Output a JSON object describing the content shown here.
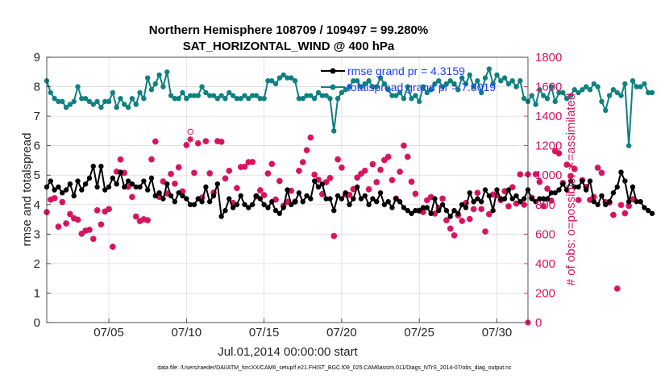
{
  "title": {
    "line1": "Northern Hemisphere 108709 / 109497 = 99.280%",
    "line2": "SAT_HORIZONTAL_WIND @ 400 hPa"
  },
  "footer": "data file: /Users/raeder/DAI/ATM_forcXX/CAM6_setup/f.e21.FHIST_BGC.f09_025.CAM6assim.011/Diags_NTrS_2014-07/obs_diag_output.nc",
  "colors": {
    "rmse": "#000000",
    "spread": "#0f8080",
    "obs": "#d6125e"
  },
  "chart_data": {
    "type": "line",
    "title": "Northern Hemisphere 108709 / 109497 = 99.280% — SAT_HORIZONTAL_WIND @ 400 hPa",
    "xlabel": "Jul.01,2014 00:00:00 start",
    "ylabel": "rmse and totalspread",
    "y2label": "# of obs: o=possible; ∗=assimilated",
    "xlim": [
      1.0,
      32.0
    ],
    "ylim": [
      0,
      9
    ],
    "y2lim": [
      0,
      1800
    ],
    "x_ticks": [
      {
        "value": 5,
        "label": "07/05"
      },
      {
        "value": 10,
        "label": "07/10"
      },
      {
        "value": 15,
        "label": "07/15"
      },
      {
        "value": 20,
        "label": "07/20"
      },
      {
        "value": 25,
        "label": "07/25"
      },
      {
        "value": 30,
        "label": "07/30"
      }
    ],
    "y_ticks": [
      0,
      1,
      2,
      3,
      4,
      5,
      6,
      7,
      8,
      9
    ],
    "y2_ticks": [
      0,
      200,
      400,
      600,
      800,
      1000,
      1200,
      1400,
      1600,
      1800
    ],
    "grid": true,
    "legend": {
      "position": "top-right",
      "entries": [
        "rmse grand pr = 4.3159",
        "totalspread grand pr = 7.8019"
      ]
    },
    "x_start": 1.0,
    "x_step": 0.25,
    "series": [
      {
        "name": "rmse grand pr = 4.3159",
        "axis": "left",
        "values": [
          4.6,
          4.8,
          4.5,
          4.6,
          4.4,
          4.5,
          4.7,
          4.3,
          4.8,
          4.5,
          4.7,
          4.9,
          5.3,
          4.6,
          5.3,
          4.5,
          4.6,
          4.9,
          4.7,
          5.1,
          4.6,
          4.8,
          4.7,
          4.6,
          4.6,
          4.8,
          4.5,
          4.9,
          4.3,
          4.4,
          4.2,
          4.7,
          4.3,
          4.1,
          4.4,
          4.3,
          4.2,
          4.0,
          4.0,
          4.2,
          4.1,
          4.6,
          4.1,
          4.3,
          4.7,
          3.6,
          3.8,
          4.2,
          3.9,
          4.0,
          4.3,
          4.0,
          3.9,
          4.0,
          4.3,
          4.2,
          4.0,
          3.9,
          4.1,
          3.8,
          3.7,
          3.9,
          4.5,
          4.0,
          4.1,
          4.4,
          4.1,
          4.3,
          4.2,
          4.8,
          4.6,
          4.7,
          4.2,
          4.2,
          3.8,
          4.3,
          4.2,
          4.4,
          4.0,
          4.2,
          4.6,
          4.2,
          4.3,
          4.0,
          4.2,
          4.1,
          4.4,
          4.0,
          4.1,
          3.9,
          4.2,
          4.1,
          3.9,
          3.8,
          3.7,
          3.8,
          3.8,
          3.9,
          3.9,
          3.7,
          4.2,
          3.8,
          4.0,
          3.8,
          3.6,
          3.8,
          3.7,
          4.0,
          3.9,
          4.4,
          4.1,
          4.2,
          4.1,
          4.5,
          4.3,
          3.8,
          4.5,
          4.2,
          4.2,
          4.5,
          4.2,
          4.3,
          4.1,
          4.2,
          4.5,
          4.2,
          4.1,
          4.2,
          4.2,
          4.2,
          4.4,
          4.4,
          4.5,
          4.7,
          4.5,
          4.8,
          4.6,
          4.6,
          4.8,
          4.5,
          4.8,
          4.1,
          4.0,
          4.3,
          4.0,
          4.1,
          4.4,
          4.6,
          5.1,
          4.8,
          4.1,
          4.6,
          4.1,
          4.1,
          3.9,
          3.8,
          3.7
        ]
      },
      {
        "name": "totalspread grand pr = 7.8019",
        "axis": "left",
        "values": [
          8.2,
          7.8,
          7.6,
          7.5,
          7.5,
          7.3,
          7.4,
          7.5,
          8.0,
          7.6,
          7.6,
          7.5,
          7.4,
          7.5,
          7.3,
          7.5,
          7.5,
          7.8,
          7.3,
          7.6,
          7.4,
          7.3,
          7.6,
          7.4,
          7.8,
          7.6,
          8.3,
          7.9,
          8.1,
          8.4,
          8.0,
          8.5,
          7.7,
          7.6,
          7.6,
          7.8,
          7.6,
          7.7,
          7.7,
          7.7,
          8.0,
          7.8,
          7.7,
          7.7,
          7.6,
          7.7,
          7.6,
          7.8,
          7.7,
          7.6,
          7.6,
          7.7,
          7.6,
          7.7,
          7.7,
          7.6,
          7.6,
          8.2,
          8.2,
          8.1,
          8.3,
          8.4,
          8.3,
          8.3,
          8.2,
          7.6,
          7.6,
          7.7,
          7.7,
          7.6,
          7.8,
          7.7,
          7.7,
          7.6,
          6.5,
          7.6,
          7.8,
          7.9,
          8.0,
          8.2,
          8.2,
          8.0,
          8.1,
          8.2,
          8.0,
          8.0,
          8.3,
          8.1,
          7.9,
          7.7,
          7.7,
          7.8,
          7.6,
          8.0,
          7.6,
          7.7,
          7.5,
          8.0,
          7.8,
          7.9,
          8.1,
          8.2,
          8.0,
          8.1,
          8.2,
          8.1,
          7.9,
          8.3,
          8.1,
          8.4,
          8.0,
          8.2,
          7.8,
          8.3,
          8.6,
          8.1,
          8.4,
          8.2,
          8.3,
          8.1,
          8.2,
          8.0,
          8.2,
          7.6,
          7.5,
          7.7,
          7.4,
          7.9,
          7.7,
          7.6,
          8.0,
          7.5,
          7.8,
          7.8,
          7.6,
          7.7,
          7.9,
          7.8,
          7.9,
          8.0,
          7.9,
          8.1,
          8.0,
          7.5,
          7.2,
          7.7,
          7.9,
          7.8,
          7.7,
          8.1,
          6.0,
          8.2,
          8.0,
          8.0,
          8.1,
          7.8,
          7.8
        ]
      },
      {
        "name": "# of obs assimilated",
        "axis": "right",
        "marker": "star",
        "values": [
          749,
          834,
          844,
          650,
          817,
          672,
          736,
          707,
          697,
          602,
          623,
          629,
          567,
          761,
          665,
          753,
          770,
          514,
          1024,
          1106,
          1015,
          921,
          852,
          719,
          688,
          700,
          694,
          1107,
          1228,
          852,
          957,
          875,
          1008,
          942,
          1053,
          890,
          1204,
          1243,
          1015,
          1216,
          847,
          1230,
          1012,
          881,
          1230,
          1226,
          977,
          1029,
          811,
          912,
          1055,
          1057,
          1088,
          1089,
          856,
          897,
          864,
          1011,
          1076,
          834,
          960,
          792,
          819,
          894,
          820,
          1029,
          1088,
          1169,
          1255,
          1003,
          968,
          871,
          952,
          980,
          587,
          1107,
          1051,
          869,
          866,
          905,
          983,
          1009,
          1030,
          904,
          1074,
          952,
          1036,
          1102,
          1124,
          966,
          841,
          1023,
          1200,
          1124,
          955,
          873,
          758,
          749,
          829,
          851,
          739,
          778,
          840,
          694,
          637,
          591,
          727,
          689,
          811,
          702,
          769,
          880,
          770,
          617,
          735,
          868,
          864,
          830,
          891,
          788,
          918,
          807,
          1005,
          799,
          1005,
          846,
          1006,
          954,
          790,
          908,
          827,
          1162,
          1148,
          947,
          1071,
          994,
          1042,
          831,
          966,
          919,
          832,
          852,
          1050,
          1015,
          816,
          814,
          730,
          230,
          797,
          741,
          791,
          836
        ]
      },
      {
        "name": "# of obs possible",
        "axis": "right",
        "marker": "circle",
        "values": [
          749,
          834,
          844,
          651,
          818,
          673,
          736,
          708,
          698,
          603,
          624,
          630,
          568,
          762,
          666,
          754,
          771,
          515,
          1025,
          1107,
          1016,
          922,
          853,
          720,
          689,
          701,
          695,
          1108,
          1229,
          853,
          958,
          876,
          1009,
          943,
          1054,
          891,
          1205,
          1295,
          1016,
          1217,
          848,
          1231,
          1013,
          882,
          1231,
          1227,
          978,
          1030,
          812,
          913,
          1056,
          1058,
          1089,
          1090,
          857,
          898,
          865,
          1012,
          1077,
          835,
          961,
          793,
          820,
          895,
          821,
          1030,
          1089,
          1170,
          1256,
          1004,
          969,
          872,
          953,
          981,
          588,
          1108,
          1052,
          870,
          867,
          906,
          984,
          1010,
          1031,
          905,
          1075,
          953,
          1037,
          1103,
          1125,
          967,
          842,
          1024,
          1201,
          1125,
          956,
          874,
          759,
          750,
          830,
          852,
          740,
          779,
          841,
          695,
          638,
          592,
          728,
          690,
          812,
          703,
          770,
          881,
          771,
          618,
          736,
          869,
          865,
          831,
          892,
          789,
          919,
          808,
          1006,
          800,
          1006,
          847,
          1007,
          955,
          791,
          909,
          828,
          1163,
          1149,
          948,
          1072,
          995,
          1043,
          832,
          967,
          920,
          833,
          853,
          1051,
          1016,
          817,
          815,
          731,
          231,
          798,
          742,
          792,
          837
        ]
      }
    ]
  }
}
